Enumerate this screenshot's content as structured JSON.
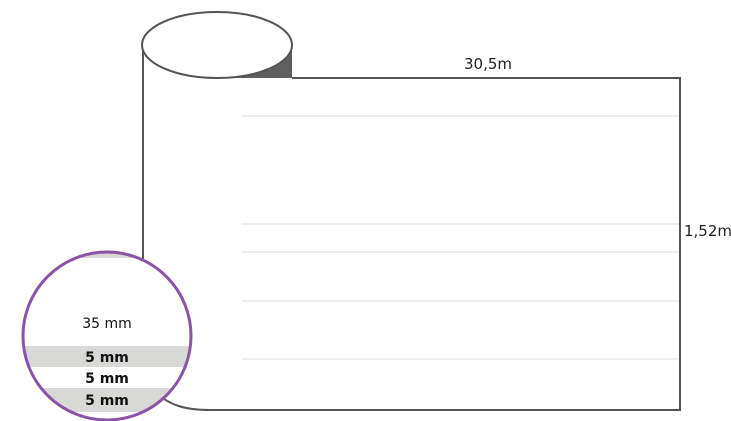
{
  "diagram": {
    "length_label": "30,5m",
    "height_label": "1,52m",
    "inset": {
      "top_band_label": "35 mm",
      "stripe_labels": [
        "5 mm",
        "5 mm",
        "5 mm"
      ]
    }
  },
  "colors": {
    "outline": "#555555",
    "roll_shadow": "#5f5f5f",
    "guide_lines": "#d9d9d9",
    "inset_ring": "#8a55a6",
    "inset_stripe": "#d8d8d6"
  }
}
